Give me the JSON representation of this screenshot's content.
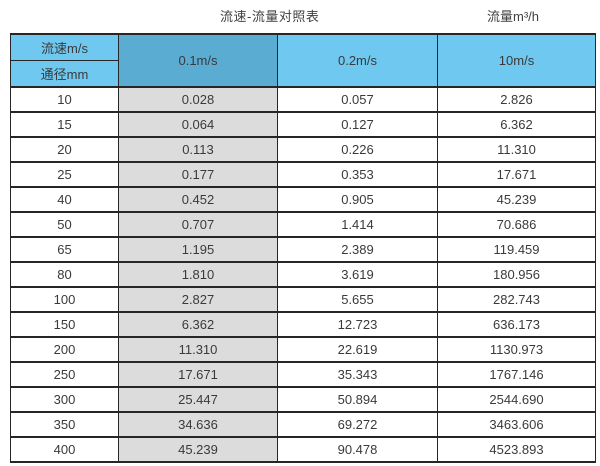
{
  "titles": {
    "left": "流速-流量对照表",
    "right": "流量m³/h"
  },
  "table": {
    "corner_top": "流速m/s",
    "corner_bottom": "通径mm",
    "columns": [
      "0.1m/s",
      "0.2m/s",
      "10m/s"
    ],
    "rows": [
      [
        "10",
        "0.028",
        "0.057",
        "2.826"
      ],
      [
        "15",
        "0.064",
        "0.127",
        "6.362"
      ],
      [
        "20",
        "0.113",
        "0.226",
        "11.310"
      ],
      [
        "25",
        "0.177",
        "0.353",
        "17.671"
      ],
      [
        "40",
        "0.452",
        "0.905",
        "45.239"
      ],
      [
        "50",
        "0.707",
        "1.414",
        "70.686"
      ],
      [
        "65",
        "1.195",
        "2.389",
        "119.459"
      ],
      [
        "80",
        "1.810",
        "3.619",
        "180.956"
      ],
      [
        "100",
        "2.827",
        "5.655",
        "282.743"
      ],
      [
        "150",
        "6.362",
        "12.723",
        "636.173"
      ],
      [
        "200",
        "11.310",
        "22.619",
        "1130.973"
      ],
      [
        "250",
        "17.671",
        "35.343",
        "1767.146"
      ],
      [
        "300",
        "25.447",
        "50.894",
        "2544.690"
      ],
      [
        "350",
        "34.636",
        "69.272",
        "3463.606"
      ],
      [
        "400",
        "45.239",
        "90.478",
        "4523.893"
      ]
    ]
  },
  "colors": {
    "header_light_blue": "#6fc8ef",
    "header_dark_blue": "#5bacd2",
    "column_gray": "#dcdcdc",
    "border": "#262626",
    "text": "#3a3a3a"
  }
}
